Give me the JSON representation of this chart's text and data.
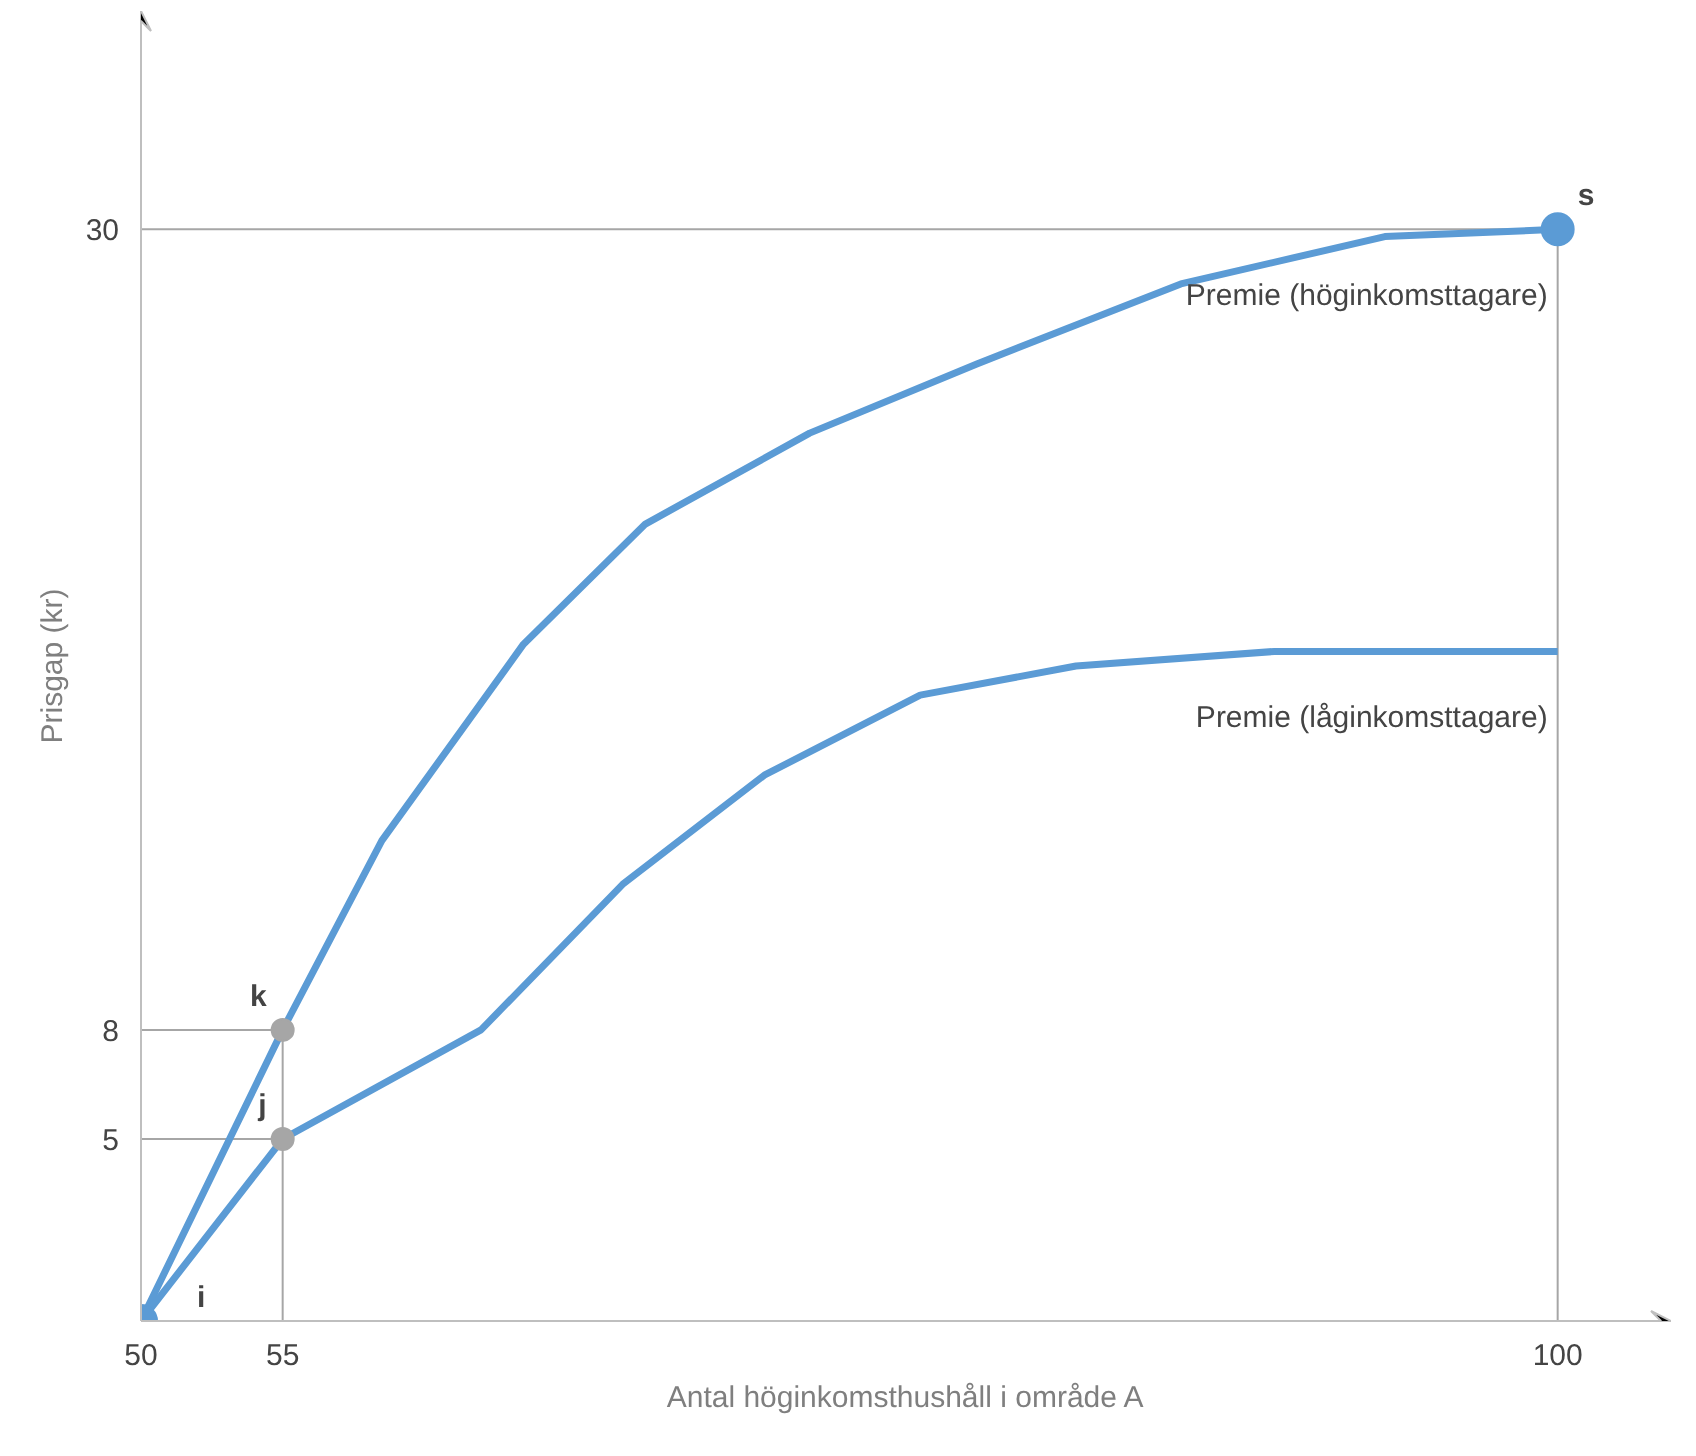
{
  "chart_data": {
    "type": "line",
    "xlabel": "Antal höginkomsthushåll i område A",
    "ylabel": "Prisgap (kr)",
    "xlim": [
      50,
      104
    ],
    "ylim": [
      0,
      36
    ],
    "xticks": [
      50,
      55,
      100
    ],
    "yticks": [
      5,
      8,
      30
    ],
    "grid": false,
    "line_style": "solid",
    "series": [
      {
        "name": "Premie (höginkomsttagare)",
        "color": "#5b9bd5",
        "marker": "none",
        "x": [
          50,
          55,
          58.5,
          63.5,
          67.8,
          73.6,
          79.5,
          86.7,
          93.9,
          100
        ],
        "values": [
          0,
          8,
          13.2,
          18.6,
          21.9,
          24.4,
          26.3,
          28.5,
          29.8,
          30
        ]
      },
      {
        "name": "Premie (låginkomsttagare)",
        "color": "#5b9bd5",
        "marker": "none",
        "x": [
          50,
          55,
          62,
          67,
          72,
          77.5,
          83,
          90,
          100
        ],
        "values": [
          0,
          5,
          8,
          12,
          15,
          17.2,
          18,
          18.4,
          18.4
        ]
      },
      {
        "type": "scatter",
        "marker": "circle",
        "x": [
          50,
          55,
          55,
          100
        ],
        "values": [
          0,
          8,
          5,
          30
        ],
        "colors": [
          "#5b9bd5",
          "#a6a6a6",
          "#a6a6a6",
          "#5b9bd5"
        ],
        "sizes": [
          1,
          0.5,
          0.5,
          1
        ]
      }
    ],
    "ref_lines": [
      {
        "axis": "y",
        "value": 30,
        "color": "#a6a6a6"
      },
      {
        "axis": "y",
        "value": 8,
        "color": "#a6a6a6"
      },
      {
        "axis": "y",
        "value": 5,
        "color": "#a6a6a6"
      },
      {
        "axis": "x",
        "value": 55,
        "color": "#a6a6a6"
      },
      {
        "axis": "x",
        "value": 100,
        "color": "#a6a6a6"
      }
    ],
    "annotations": [
      {
        "text": "i",
        "x": 50,
        "y": 0
      },
      {
        "text": "k",
        "x": 55,
        "y": 8
      },
      {
        "text": "j",
        "x": 55,
        "y": 5
      },
      {
        "text": "s",
        "x": 100,
        "y": 30
      }
    ]
  }
}
